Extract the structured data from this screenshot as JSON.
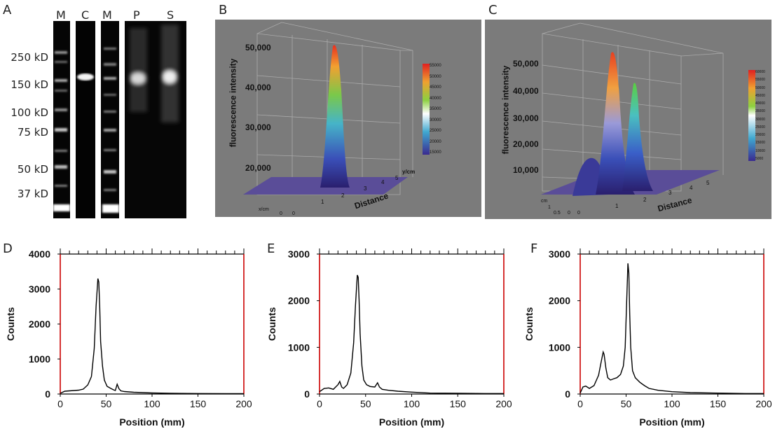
{
  "panel_letters": [
    "A",
    "B",
    "C",
    "D",
    "E",
    "F"
  ],
  "gel": {
    "lanes": [
      "M",
      "C",
      "M",
      "P",
      "S"
    ],
    "mw_markers": [
      "250 kD",
      "150 kD",
      "100 kD",
      "75 kD",
      "50 kD",
      "37 kD"
    ]
  },
  "surface_B": {
    "ylabel": "fluorescence intensity",
    "yticks": [
      "50,000",
      "40,000",
      "30,000",
      "20,000"
    ],
    "xaxis_title": "Distance",
    "xticks": [
      "1",
      "2",
      "3",
      "4",
      "5"
    ],
    "yunit": "y/cm",
    "xunit": "x/cm",
    "origin_ticks": [
      "0",
      "0"
    ],
    "colorbar": [
      "55000",
      "50000",
      "45000",
      "40000",
      "35000",
      "30000",
      "25000",
      "20000",
      "15000"
    ]
  },
  "surface_C": {
    "ylabel": "fluorescence intensity",
    "yticks": [
      "50,000",
      "40,000",
      "30,000",
      "20,000",
      "10,000"
    ],
    "xaxis_title": "Distance",
    "xticks": [
      "1",
      "2",
      "3",
      "4",
      "5"
    ],
    "side_ticks": [
      "cm",
      "1",
      "0.5",
      "0",
      "0"
    ],
    "colorbar": [
      "60000",
      "55000",
      "50000",
      "45000",
      "40000",
      "35000",
      "30000",
      "25000",
      "20000",
      "15000",
      "10000",
      "5000"
    ]
  },
  "colors": {
    "trace": "#000000",
    "frame_red": "#cc0000",
    "surface_bg": "#7b7b7b"
  },
  "chart_data": [
    {
      "type": "line",
      "panel": "D",
      "xlabel": "Position (mm)",
      "ylabel": "Counts",
      "xlim": [
        0,
        200
      ],
      "ylim": [
        0,
        4000
      ],
      "xticks": [
        0,
        50,
        100,
        150,
        200
      ],
      "yticks": [
        0,
        1000,
        2000,
        3000,
        4000
      ],
      "x": [
        0,
        5,
        10,
        15,
        20,
        25,
        30,
        34,
        37,
        39,
        41,
        42,
        43,
        44,
        46,
        48,
        51,
        55,
        58,
        60,
        62,
        64,
        66,
        70,
        80,
        90,
        100,
        120,
        150,
        180,
        200
      ],
      "y": [
        20,
        80,
        90,
        100,
        110,
        140,
        260,
        500,
        1300,
        2500,
        3300,
        3200,
        2500,
        1500,
        800,
        400,
        220,
        160,
        120,
        100,
        280,
        150,
        90,
        70,
        50,
        40,
        30,
        20,
        15,
        10,
        10
      ]
    },
    {
      "type": "line",
      "panel": "E",
      "xlabel": "Position (mm)",
      "ylabel": "Counts",
      "xlim": [
        0,
        200
      ],
      "ylim": [
        0,
        3000
      ],
      "xticks": [
        0,
        50,
        100,
        150,
        200
      ],
      "yticks": [
        0,
        1000,
        2000,
        3000
      ],
      "x": [
        0,
        5,
        10,
        15,
        20,
        22,
        24,
        26,
        30,
        34,
        37,
        39,
        41,
        42,
        43,
        44,
        46,
        48,
        51,
        55,
        60,
        63,
        65,
        68,
        75,
        85,
        100,
        120,
        150,
        180,
        200
      ],
      "y": [
        50,
        120,
        130,
        100,
        200,
        270,
        150,
        120,
        200,
        450,
        1100,
        1900,
        2550,
        2500,
        2000,
        1300,
        600,
        300,
        200,
        160,
        150,
        240,
        150,
        100,
        80,
        60,
        40,
        20,
        15,
        10,
        10
      ]
    },
    {
      "type": "line",
      "panel": "F",
      "xlabel": "Position (mm)",
      "ylabel": "Counts",
      "xlim": [
        0,
        200
      ],
      "ylim": [
        0,
        3000
      ],
      "xticks": [
        0,
        50,
        100,
        150,
        200
      ],
      "yticks": [
        0,
        1000,
        2000,
        3000
      ],
      "x": [
        0,
        3,
        6,
        10,
        15,
        20,
        23,
        25,
        26,
        28,
        30,
        33,
        37,
        40,
        44,
        47,
        49,
        51,
        52,
        53,
        54,
        55,
        57,
        60,
        65,
        70,
        75,
        85,
        100,
        120,
        150,
        180,
        200
      ],
      "y": [
        20,
        150,
        170,
        120,
        180,
        400,
        700,
        900,
        850,
        550,
        350,
        300,
        330,
        350,
        420,
        600,
        1000,
        2200,
        2800,
        2600,
        1700,
        1000,
        500,
        350,
        250,
        180,
        120,
        80,
        50,
        30,
        20,
        10,
        10
      ]
    }
  ]
}
